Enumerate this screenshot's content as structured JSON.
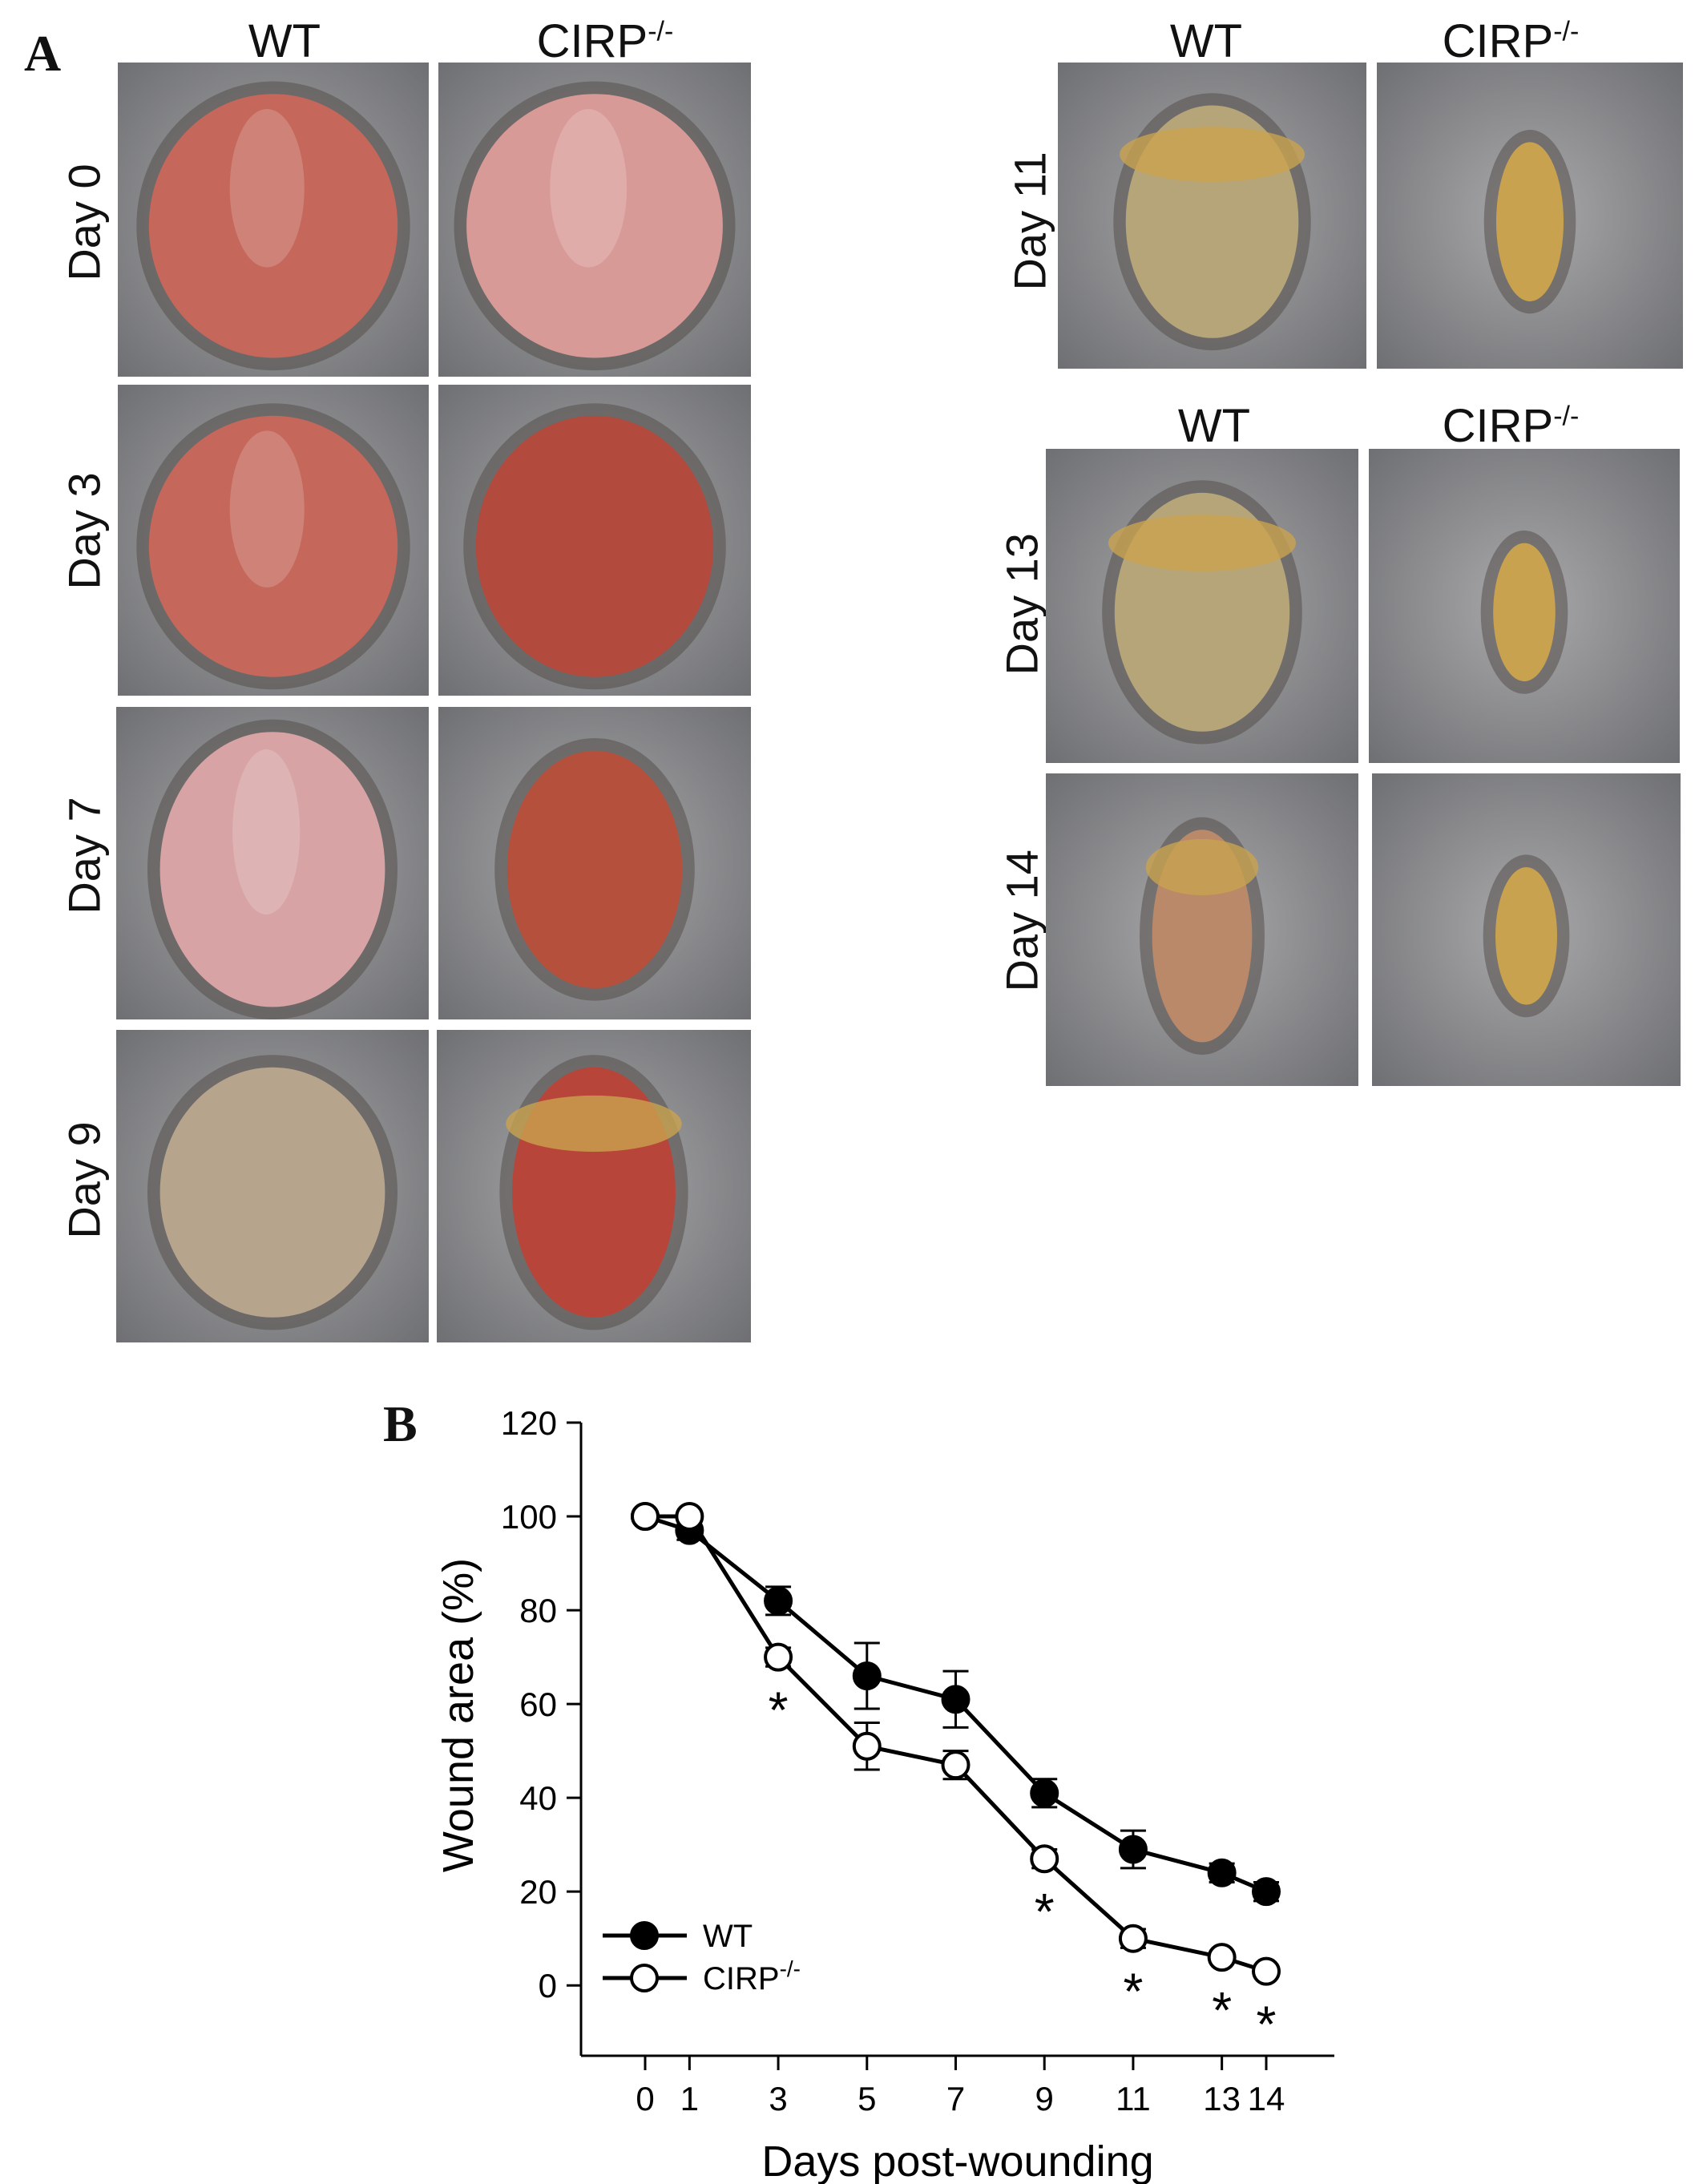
{
  "panel_a": {
    "letter": "A",
    "group_wt": "WT",
    "group_ko_base": "CIRP",
    "group_ko_sup": "-/-",
    "row_labels": [
      "Day 0",
      "Day 3",
      "Day 7",
      "Day 9",
      "Day 11",
      "Day 13",
      "Day 14"
    ],
    "colors": {
      "fur": "#a9a9ab",
      "fur_dark": "#6f7073",
      "wound_red": "#c5675a",
      "wound_pink": "#d89a97",
      "wound_tan": "#b7a57a",
      "scab": "#c9a24f"
    }
  },
  "panel_b": {
    "letter": "B"
  },
  "chart_data": {
    "type": "line",
    "x": [
      0,
      1,
      3,
      5,
      7,
      9,
      11,
      13,
      14
    ],
    "xticks": [
      "0",
      "1",
      "3",
      "5",
      "7",
      "9",
      "11",
      "13",
      "14"
    ],
    "xlabel": "Days post-wounding",
    "ylabel": "Wound area (%)",
    "ylim": [
      -15,
      120
    ],
    "yticks": [
      0,
      20,
      40,
      60,
      80,
      100,
      120
    ],
    "grid": false,
    "legend_position": "bottom-left",
    "series": [
      {
        "name": "WT",
        "marker": "filled-circle",
        "values": [
          100,
          97,
          82,
          66,
          61,
          41,
          29,
          24,
          20
        ],
        "errors": [
          0,
          2,
          3,
          7,
          6,
          3,
          4,
          2,
          2
        ]
      },
      {
        "name_base": "CIRP",
        "name_sup": "-/-",
        "marker": "open-circle",
        "values": [
          100,
          100,
          70,
          51,
          47,
          27,
          10,
          6,
          3
        ],
        "errors": [
          0,
          0,
          2,
          5,
          3,
          2,
          2,
          1,
          1
        ]
      }
    ],
    "significance_symbol": "*",
    "significant_x": [
      3,
      9,
      11,
      13,
      14
    ]
  }
}
